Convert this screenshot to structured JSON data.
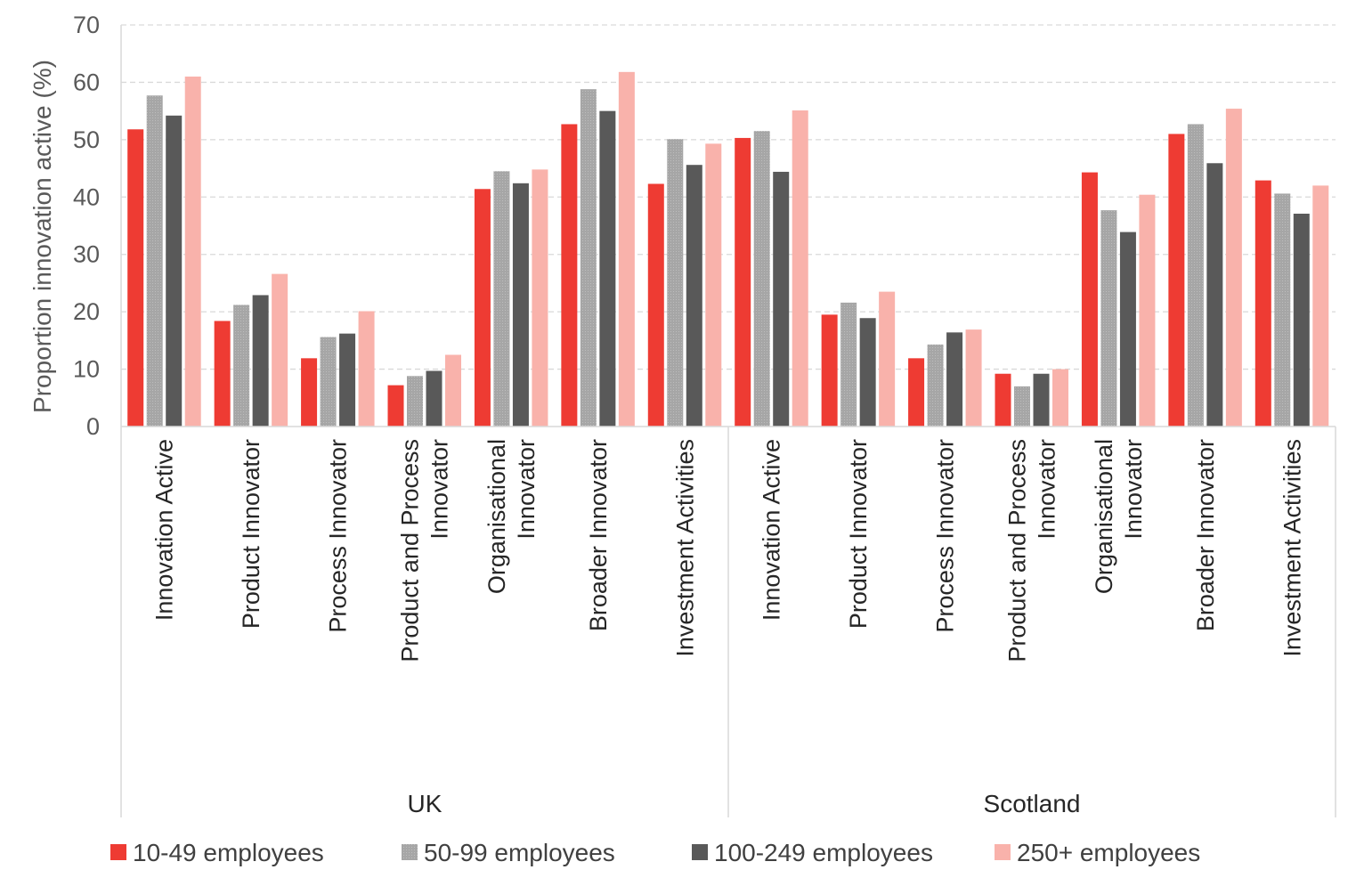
{
  "chart_data": {
    "type": "bar",
    "ylabel": "Proportion innovation active (%)",
    "ylim": [
      0,
      70
    ],
    "yticks": [
      0,
      10,
      20,
      30,
      40,
      50,
      60,
      70
    ],
    "grid": true,
    "legend_position": "bottom",
    "groups": [
      {
        "name": "UK",
        "categories": [
          "Innovation Active",
          "Product Innovator",
          "Process Innovator",
          "Product and Process Innovator",
          "Organisational Innovator",
          "Broader Innovator",
          "Investment Activities"
        ]
      },
      {
        "name": "Scotland",
        "categories": [
          "Innovation Active",
          "Product Innovator",
          "Process Innovator",
          "Product and Process Innovator",
          "Organisational Innovator",
          "Broader Innovator",
          "Investment Activities"
        ]
      }
    ],
    "series": [
      {
        "name": "10-49 employees",
        "color": "#ee3b33",
        "values": [
          51.8,
          18.4,
          11.9,
          7.2,
          41.4,
          52.7,
          42.3,
          50.3,
          19.5,
          11.9,
          9.2,
          44.3,
          51.0,
          42.9
        ]
      },
      {
        "name": "50-99 employees",
        "color": "#a6a6a6",
        "values": [
          57.7,
          21.2,
          15.6,
          8.8,
          44.5,
          58.8,
          50.1,
          51.5,
          21.6,
          14.3,
          7.0,
          37.7,
          52.7,
          40.6
        ]
      },
      {
        "name": "100-249 employees",
        "color": "#595959",
        "values": [
          54.2,
          22.9,
          16.2,
          9.7,
          42.4,
          55.0,
          45.6,
          44.4,
          18.9,
          16.4,
          9.2,
          33.9,
          45.9,
          37.1
        ]
      },
      {
        "name": "250+ employees",
        "color": "#f9b2ab",
        "values": [
          61.0,
          26.6,
          20.1,
          12.5,
          44.8,
          61.8,
          49.3,
          55.1,
          23.5,
          16.9,
          10.0,
          40.4,
          55.4,
          42.0
        ]
      }
    ]
  }
}
